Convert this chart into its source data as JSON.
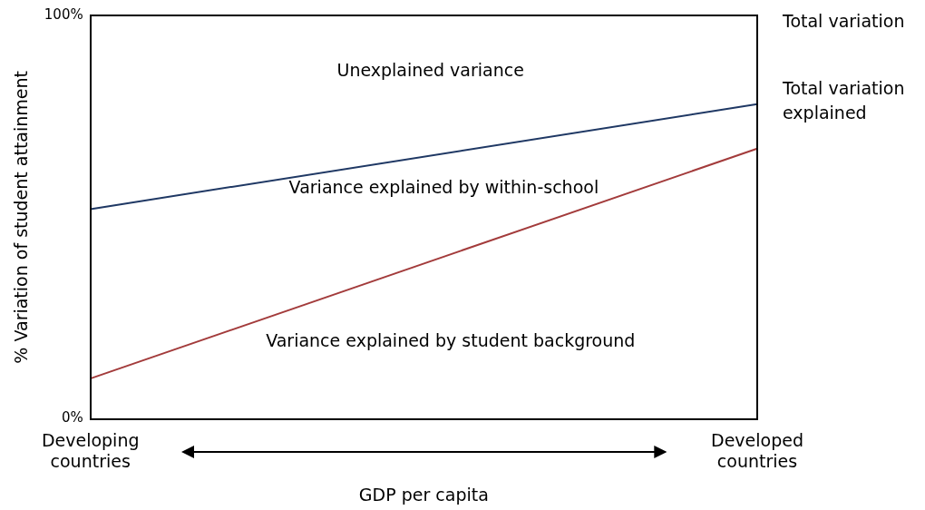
{
  "chart_data": {
    "type": "line",
    "xlabel": "GDP per capita",
    "ylabel": "% Variation of student attainment",
    "categories": [
      "Developing countries",
      "Developed countries"
    ],
    "series": [
      {
        "name": "Total variation explained",
        "color": "#1f3864",
        "values": [
          52,
          78
        ]
      },
      {
        "color": "#a33b3b",
        "values": [
          10,
          67
        ]
      }
    ],
    "ylim": [
      0,
      100
    ],
    "yticks": [
      {
        "value": 0,
        "label": "0%"
      },
      {
        "value": 100,
        "label": "100%"
      }
    ],
    "legend": false,
    "annotations": [
      "Total variation",
      "Unexplained variance",
      "Variance explained by within-school",
      "Variance explained by student background"
    ]
  }
}
